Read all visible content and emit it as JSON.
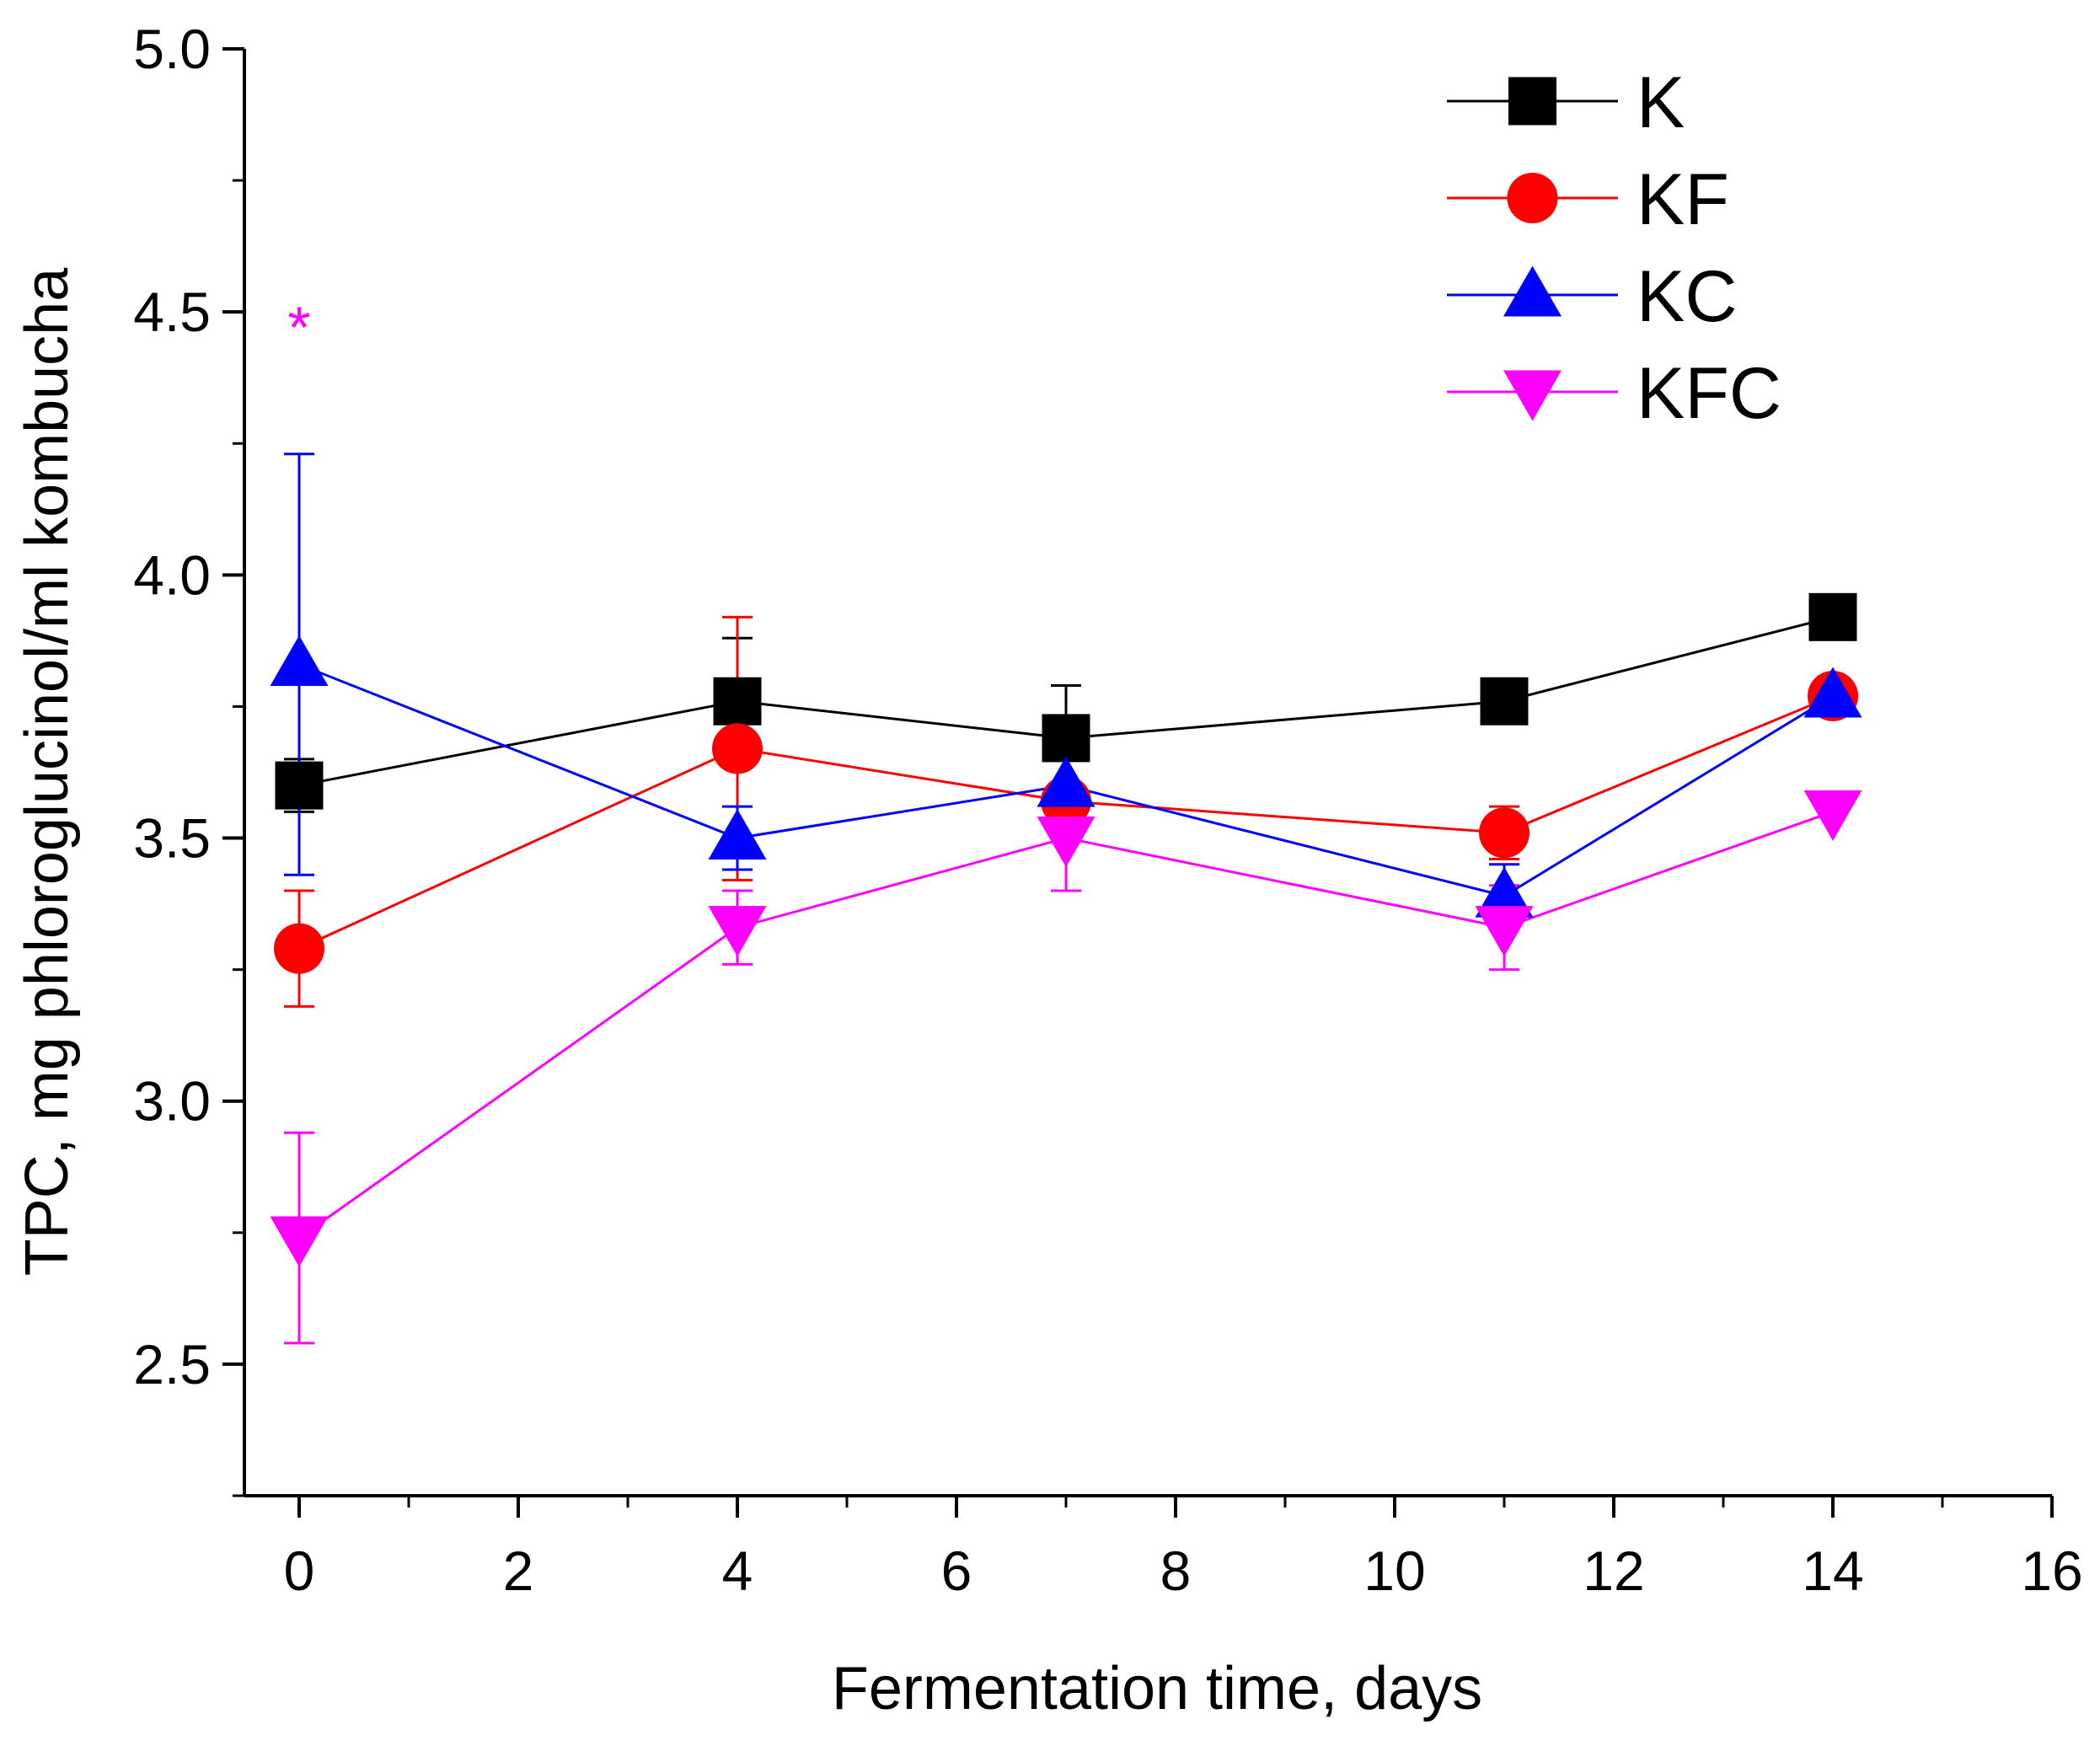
{
  "chart_data": {
    "type": "line",
    "title": "",
    "xlabel": "Fermentation time, days",
    "ylabel": "TPC, mg phloroglucinol/ml kombucha",
    "xlim": [
      -0.5,
      16
    ],
    "ylim": [
      2.25,
      5.0
    ],
    "xticks": [
      0,
      2,
      4,
      6,
      8,
      10,
      12,
      14,
      16
    ],
    "xtick_labels": [
      "0",
      "2",
      "4",
      "6",
      "8",
      "10",
      "12",
      "14",
      "16"
    ],
    "yticks": [
      2.5,
      3.0,
      3.5,
      4.0,
      4.5,
      5.0
    ],
    "ytick_labels": [
      "2.5",
      "3.0",
      "3.5",
      "4.0",
      "4.5",
      "5.0"
    ],
    "grid": false,
    "legend_position": "top-right",
    "x": [
      0,
      4,
      7,
      11,
      14
    ],
    "series": [
      {
        "name": "K",
        "color": "#000000",
        "marker": "square",
        "values": [
          3.6,
          3.76,
          3.69,
          3.76,
          3.92
        ],
        "errors": [
          0.05,
          0.12,
          0.1,
          0.04,
          0.04
        ]
      },
      {
        "name": "KF",
        "color": "#ff0000",
        "marker": "circle",
        "values": [
          3.29,
          3.67,
          3.57,
          3.51,
          3.77
        ],
        "errors": [
          0.11,
          0.25,
          0.0,
          0.05,
          0.0
        ]
      },
      {
        "name": "KC",
        "color": "#0000ff",
        "marker": "triangle-up",
        "values": [
          3.83,
          3.5,
          3.6,
          3.39,
          3.77
        ],
        "errors": [
          0.4,
          0.06,
          0.0,
          0.06,
          0.0
        ]
      },
      {
        "name": "KFC",
        "color": "#ff00ff",
        "marker": "triangle-down",
        "values": [
          2.74,
          3.33,
          3.5,
          3.33,
          3.55
        ],
        "errors": [
          0.2,
          0.07,
          0.1,
          0.08,
          0.0
        ]
      }
    ],
    "annotations": [
      {
        "text": "*",
        "x": 0,
        "y": 4.48,
        "color": "#ff00ff"
      }
    ]
  }
}
